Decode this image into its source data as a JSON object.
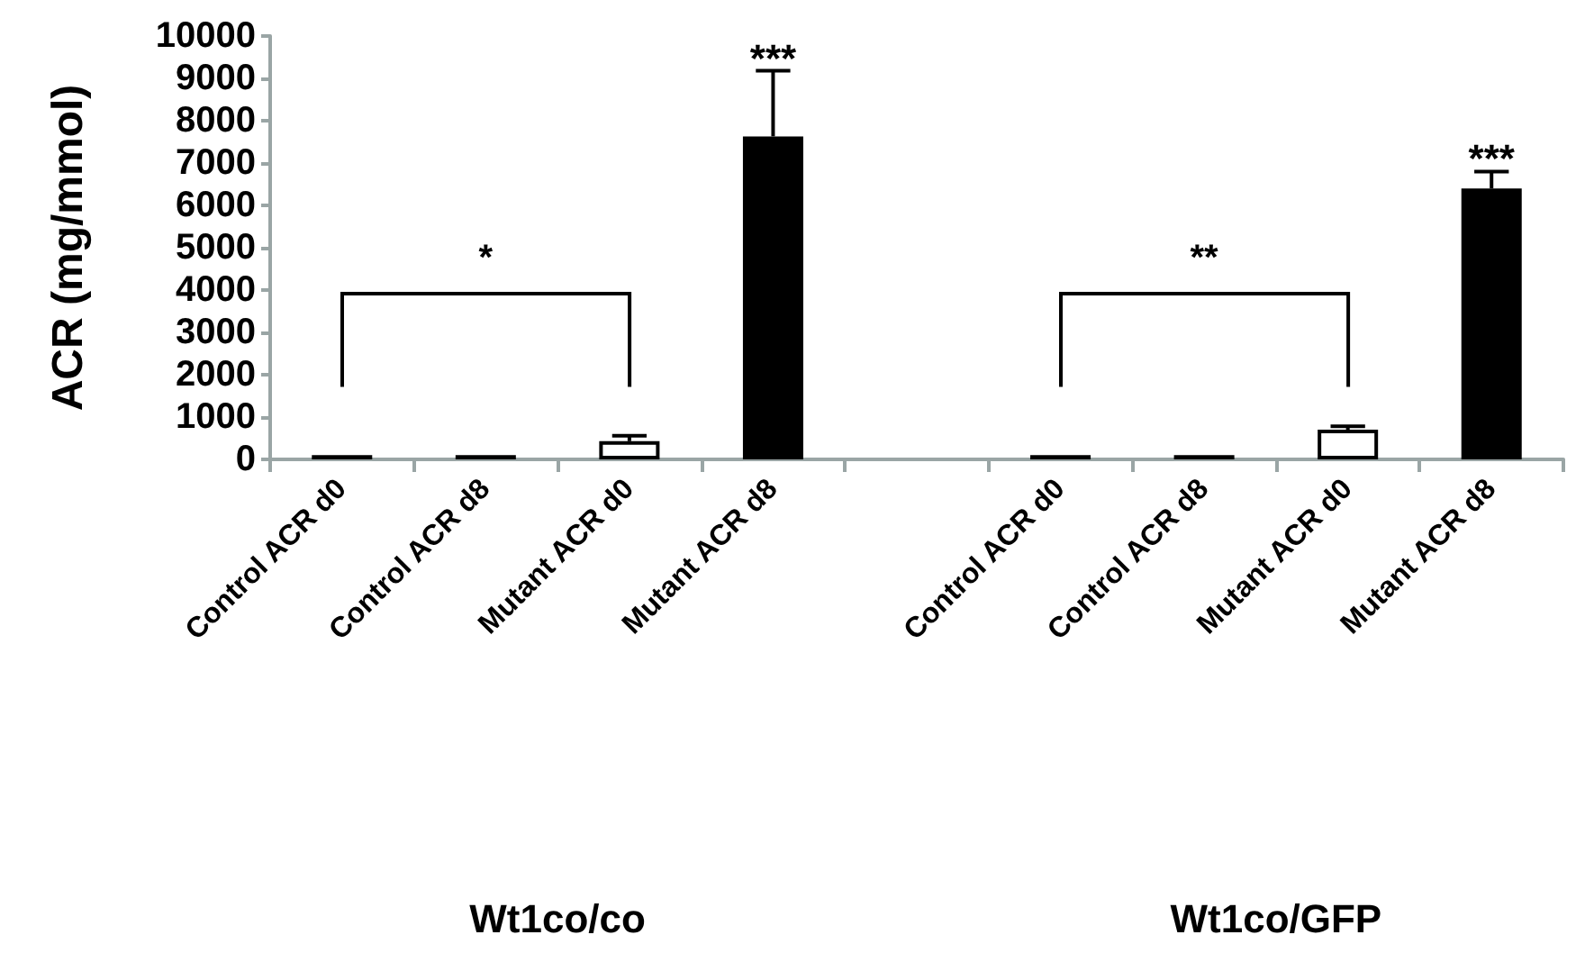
{
  "chart_data": {
    "type": "bar",
    "ylabel": "ACR (mg/mmol)",
    "categories": [
      "Control ACR d0",
      "Control ACR d8",
      "Mutant ACR d0",
      "Mutant ACR d8",
      null,
      "Control ACR d0",
      "Control ACR d8",
      "Mutant ACR d0",
      "Mutant ACR d8"
    ],
    "values": [
      100,
      100,
      430,
      7630,
      null,
      100,
      100,
      700,
      6400
    ],
    "errors": [
      null,
      null,
      130,
      1550,
      null,
      null,
      null,
      80,
      400
    ],
    "colors": [
      "#ffffff",
      "#ffffff",
      "#ffffff",
      "#000000",
      null,
      "#ffffff",
      "#ffffff",
      "#ffffff",
      "#000000"
    ],
    "ylim": [
      0,
      10000
    ],
    "yticks": [
      0,
      1000,
      2000,
      3000,
      4000,
      5000,
      6000,
      7000,
      8000,
      9000,
      10000
    ],
    "grid": false,
    "annotations": [
      "*",
      "**",
      "***",
      "***",
      "Wt1co/co",
      "Wt1co/GFP"
    ]
  }
}
